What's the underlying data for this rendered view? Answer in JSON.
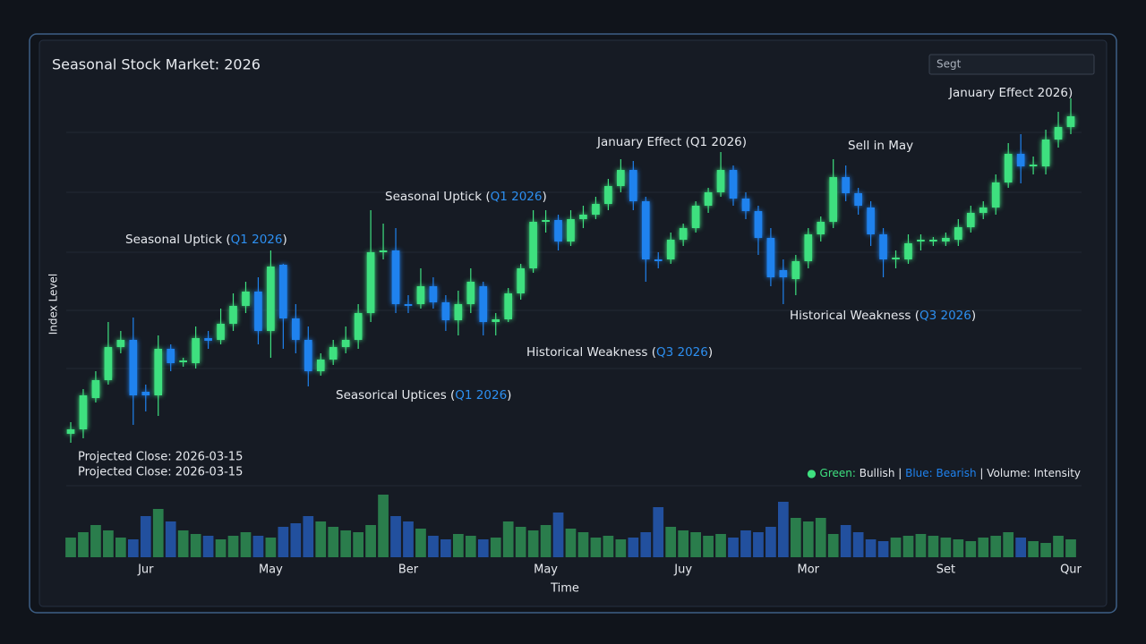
{
  "chart_data": {
    "type": "candlestick",
    "title": "Seasonal Stock Market: 2026",
    "search_placeholder": "Segt",
    "y_label": "Index Level",
    "x_label": "Time",
    "ylim": [
      0,
      400
    ],
    "volume_lim": [
      0,
      80
    ],
    "up_color": "#3ee07f",
    "down_color": "#1f82ee",
    "volume_up_color": "#2a7d4c",
    "volume_down_color": "#22509e",
    "categories": [
      null,
      null,
      null,
      null,
      null,
      null,
      "Jur",
      null,
      null,
      null,
      null,
      null,
      null,
      null,
      null,
      null,
      "May",
      null,
      null,
      null,
      null,
      null,
      null,
      null,
      null,
      null,
      null,
      "Ber",
      null,
      null,
      null,
      null,
      null,
      null,
      null,
      null,
      null,
      null,
      "May",
      null,
      null,
      null,
      null,
      null,
      null,
      null,
      null,
      null,
      null,
      "Juy",
      null,
      null,
      null,
      null,
      null,
      null,
      null,
      null,
      null,
      "Mor",
      null,
      null,
      null,
      null,
      null,
      null,
      null,
      null,
      null,
      null,
      "Set",
      null,
      null,
      null,
      null,
      null,
      null,
      null,
      null,
      null,
      "Qur"
    ],
    "open": [
      15,
      20,
      55,
      75,
      112,
      120,
      62,
      58,
      110,
      95,
      94,
      122,
      120,
      138,
      158,
      174,
      130,
      204,
      144,
      120,
      85,
      98,
      112,
      120,
      150,
      218,
      220,
      160,
      160,
      180,
      162,
      142,
      160,
      180,
      140,
      143,
      172,
      200,
      252,
      254,
      230,
      255,
      260,
      272,
      292,
      310,
      275,
      210,
      210,
      232,
      245,
      270,
      285,
      310,
      278,
      264,
      234,
      198,
      188,
      208,
      238,
      252,
      302,
      284,
      268,
      238,
      210,
      210,
      230,
      230,
      230,
      232,
      246,
      262,
      268,
      296,
      328,
      314,
      314,
      344,
      358
    ],
    "high": [
      28,
      65,
      85,
      140,
      130,
      145,
      70,
      125,
      115,
      100,
      135,
      130,
      155,
      172,
      185,
      190,
      220,
      205,
      160,
      135,
      105,
      120,
      135,
      160,
      265,
      250,
      245,
      170,
      200,
      190,
      170,
      175,
      200,
      185,
      150,
      178,
      205,
      265,
      265,
      260,
      265,
      270,
      280,
      300,
      322,
      320,
      280,
      218,
      240,
      250,
      275,
      290,
      330,
      315,
      285,
      270,
      245,
      210,
      215,
      245,
      258,
      322,
      315,
      290,
      275,
      245,
      220,
      238,
      238,
      235,
      240,
      255,
      270,
      275,
      305,
      340,
      350,
      325,
      355,
      375,
      390
    ],
    "low": [
      5,
      10,
      50,
      70,
      105,
      25,
      40,
      35,
      85,
      90,
      88,
      110,
      115,
      130,
      150,
      115,
      100,
      110,
      105,
      68,
      80,
      92,
      105,
      110,
      140,
      210,
      150,
      150,
      155,
      155,
      130,
      125,
      150,
      125,
      125,
      140,
      165,
      195,
      240,
      220,
      225,
      245,
      255,
      265,
      285,
      265,
      185,
      200,
      205,
      225,
      240,
      262,
      280,
      270,
      255,
      215,
      180,
      160,
      170,
      200,
      230,
      245,
      275,
      260,
      225,
      190,
      200,
      205,
      220,
      225,
      225,
      225,
      240,
      255,
      260,
      290,
      295,
      305,
      305,
      335,
      350
    ],
    "close": [
      20,
      58,
      75,
      112,
      120,
      58,
      58,
      110,
      94,
      97,
      122,
      119,
      138,
      158,
      174,
      130,
      202,
      144,
      120,
      85,
      98,
      112,
      120,
      150,
      218,
      220,
      160,
      158,
      180,
      162,
      142,
      160,
      185,
      140,
      143,
      172,
      200,
      252,
      254,
      230,
      255,
      260,
      272,
      292,
      310,
      275,
      210,
      208,
      232,
      245,
      270,
      285,
      310,
      278,
      264,
      234,
      190,
      190,
      208,
      238,
      252,
      302,
      284,
      270,
      238,
      210,
      212,
      228,
      232,
      232,
      234,
      246,
      262,
      268,
      296,
      328,
      314,
      316,
      344,
      358,
      370
    ],
    "volume": [
      22,
      28,
      36,
      30,
      22,
      20,
      46,
      54,
      40,
      30,
      26,
      24,
      20,
      24,
      28,
      24,
      22,
      34,
      38,
      46,
      40,
      34,
      30,
      28,
      36,
      70,
      46,
      40,
      32,
      24,
      20,
      26,
      24,
      20,
      22,
      40,
      34,
      30,
      36,
      50,
      32,
      28,
      22,
      24,
      20,
      22,
      28,
      56,
      34,
      30,
      28,
      24,
      26,
      22,
      30,
      28,
      34,
      62,
      44,
      40,
      44,
      26,
      36,
      28,
      20,
      18,
      22,
      24,
      26,
      24,
      22,
      20,
      18,
      22,
      24,
      28,
      22,
      18,
      16,
      24,
      20
    ],
    "annotations": [
      [
        "Seasonal Uptick (",
        "Q1 2026",
        ")"
      ],
      [
        "Seasonal Uptick (",
        "Q1 2026",
        ")"
      ],
      [
        "January Effect (Q1 2026)"
      ],
      [
        "Sell in May"
      ],
      [
        "January Effect 2026)"
      ],
      [
        "Seasorical Uptices (",
        "Q1 2026",
        ")"
      ],
      [
        "Historical Weakness (",
        "Q3 2026",
        ")"
      ],
      [
        "Historical Weakness (",
        "Q3 2026",
        ")"
      ]
    ],
    "notes": [
      "Projected Close: 2026-03-15",
      "Projected Close: 2026-03-15"
    ],
    "legend": [
      "● Green:",
      " Bullish | ",
      "Blue: Bearish",
      " | Volume: Intensity"
    ]
  }
}
